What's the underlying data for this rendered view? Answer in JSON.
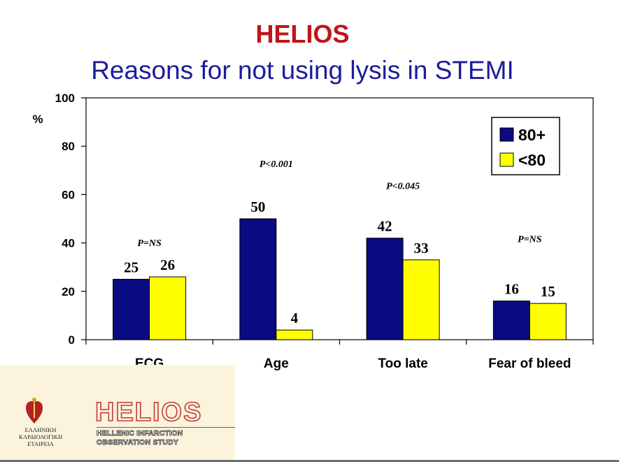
{
  "header": {
    "title": "HELIOS",
    "subtitle": "Reasons for not using lysis in STEMI"
  },
  "chart_data": {
    "type": "bar",
    "categories": [
      "ECG",
      "Age",
      "Too late",
      "Fear of bleed"
    ],
    "series": [
      {
        "name": "80+",
        "values": [
          25,
          50,
          42,
          16
        ],
        "color": "#0a0a82"
      },
      {
        "name": "<80",
        "values": [
          26,
          4,
          33,
          15
        ],
        "color": "#ffff00"
      }
    ],
    "ylabel": "%",
    "ylim": [
      0,
      100
    ],
    "yticks": [
      0,
      20,
      40,
      60,
      80,
      100
    ],
    "grid": false,
    "legend_position": "top-right",
    "annotations": [
      "P=NS",
      "P<0.001",
      "P<0.045",
      "P=NS"
    ]
  },
  "logo": {
    "society": [
      "ΕΛΛΗΝΙΚΗ",
      "ΚΑΡΔΙΟΛΟΓΙΚΗ",
      "ΕΤΑΙΡΕΙΑ"
    ],
    "name": "HELIOS",
    "tagline": [
      "HELLENIC INFARCTION",
      "OBSERVATION STUDY"
    ]
  }
}
